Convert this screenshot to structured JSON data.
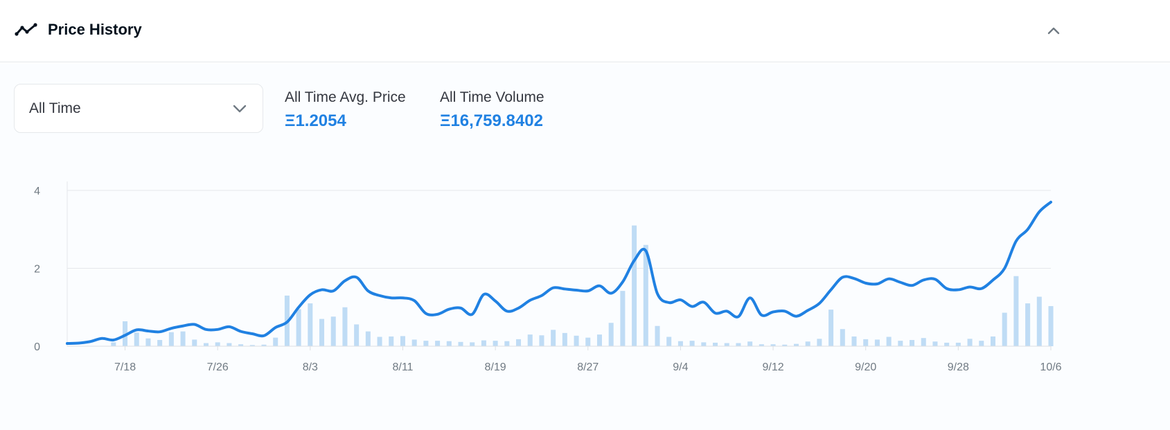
{
  "header": {
    "title": "Price History",
    "icon": "chart-line-icon",
    "collapse_icon": "chevron-up-icon"
  },
  "controls": {
    "range_select": {
      "value": "All Time",
      "icon": "chevron-down-icon"
    },
    "avg_price": {
      "label": "All Time Avg. Price",
      "value": "Ξ1.2054"
    },
    "volume": {
      "label": "All Time Volume",
      "value": "Ξ16,759.8402"
    }
  },
  "colors": {
    "line": "#2081e2",
    "bar": "#bfdcf5",
    "accent": "#2081e2",
    "grid": "#e5e8eb"
  },
  "chart_data": {
    "type": "line",
    "y_ticks": [
      "0",
      "2",
      "4"
    ],
    "x_ticks": [
      "7/18",
      "7/26",
      "8/3",
      "8/11",
      "8/19",
      "8/27",
      "9/4",
      "9/12",
      "9/20",
      "9/28",
      "10/6"
    ],
    "ylim": [
      0,
      4
    ],
    "xlim": [
      "2021-07-13",
      "2021-10-06"
    ],
    "grid": true,
    "series": [
      {
        "type": "line",
        "x": [
          "2021-07-13",
          "2021-07-14",
          "2021-07-15",
          "2021-07-16",
          "2021-07-17",
          "2021-07-18",
          "2021-07-19",
          "2021-07-20",
          "2021-07-21",
          "2021-07-22",
          "2021-07-23",
          "2021-07-24",
          "2021-07-25",
          "2021-07-26",
          "2021-07-27",
          "2021-07-28",
          "2021-07-29",
          "2021-07-30",
          "2021-07-31",
          "2021-08-01",
          "2021-08-02",
          "2021-08-03",
          "2021-08-04",
          "2021-08-05",
          "2021-08-06",
          "2021-08-07",
          "2021-08-08",
          "2021-08-09",
          "2021-08-10",
          "2021-08-11",
          "2021-08-12",
          "2021-08-13",
          "2021-08-14",
          "2021-08-15",
          "2021-08-16",
          "2021-08-17",
          "2021-08-18",
          "2021-08-19",
          "2021-08-20",
          "2021-08-21",
          "2021-08-22",
          "2021-08-23",
          "2021-08-24",
          "2021-08-25",
          "2021-08-26",
          "2021-08-27",
          "2021-08-28",
          "2021-08-29",
          "2021-08-30",
          "2021-08-31",
          "2021-09-01",
          "2021-09-02",
          "2021-09-03",
          "2021-09-04",
          "2021-09-05",
          "2021-09-06",
          "2021-09-07",
          "2021-09-08",
          "2021-09-09",
          "2021-09-10",
          "2021-09-11",
          "2021-09-12",
          "2021-09-13",
          "2021-09-14",
          "2021-09-15",
          "2021-09-16",
          "2021-09-17",
          "2021-09-18",
          "2021-09-19",
          "2021-09-20",
          "2021-09-21",
          "2021-09-22",
          "2021-09-23",
          "2021-09-24",
          "2021-09-25",
          "2021-09-26",
          "2021-09-27",
          "2021-09-28",
          "2021-09-29",
          "2021-09-30",
          "2021-10-01",
          "2021-10-02",
          "2021-10-03",
          "2021-10-04",
          "2021-10-05",
          "2021-10-06"
        ],
        "values": [
          0.07,
          0.08,
          0.12,
          0.2,
          0.16,
          0.28,
          0.42,
          0.39,
          0.37,
          0.46,
          0.52,
          0.56,
          0.43,
          0.43,
          0.5,
          0.38,
          0.32,
          0.27,
          0.48,
          0.62,
          1.0,
          1.32,
          1.45,
          1.42,
          1.68,
          1.77,
          1.42,
          1.3,
          1.24,
          1.24,
          1.17,
          0.84,
          0.82,
          0.95,
          0.98,
          0.82,
          1.33,
          1.16,
          0.9,
          0.98,
          1.18,
          1.3,
          1.5,
          1.47,
          1.44,
          1.42,
          1.55,
          1.36,
          1.65,
          2.2,
          2.45,
          1.35,
          1.12,
          1.19,
          1.02,
          1.13,
          0.85,
          0.9,
          0.76,
          1.24,
          0.8,
          0.88,
          0.9,
          0.77,
          0.92,
          1.1,
          1.45,
          1.77,
          1.74,
          1.62,
          1.6,
          1.73,
          1.64,
          1.56,
          1.7,
          1.72,
          1.48,
          1.45,
          1.52,
          1.48,
          1.7,
          2.0,
          2.7,
          3.0,
          3.45,
          3.7
        ]
      },
      {
        "type": "bar",
        "x": [
          "2021-07-17",
          "2021-07-18",
          "2021-07-19",
          "2021-07-20",
          "2021-07-21",
          "2021-07-22",
          "2021-07-23",
          "2021-07-24",
          "2021-07-25",
          "2021-07-26",
          "2021-07-27",
          "2021-07-28",
          "2021-07-29",
          "2021-07-30",
          "2021-07-31",
          "2021-08-01",
          "2021-08-02",
          "2021-08-03",
          "2021-08-04",
          "2021-08-05",
          "2021-08-06",
          "2021-08-07",
          "2021-08-08",
          "2021-08-09",
          "2021-08-10",
          "2021-08-11",
          "2021-08-12",
          "2021-08-13",
          "2021-08-14",
          "2021-08-15",
          "2021-08-16",
          "2021-08-17",
          "2021-08-18",
          "2021-08-19",
          "2021-08-20",
          "2021-08-21",
          "2021-08-22",
          "2021-08-23",
          "2021-08-24",
          "2021-08-25",
          "2021-08-26",
          "2021-08-27",
          "2021-08-28",
          "2021-08-29",
          "2021-08-30",
          "2021-08-31",
          "2021-09-01",
          "2021-09-02",
          "2021-09-03",
          "2021-09-04",
          "2021-09-05",
          "2021-09-06",
          "2021-09-07",
          "2021-09-08",
          "2021-09-09",
          "2021-09-10",
          "2021-09-11",
          "2021-09-12",
          "2021-09-13",
          "2021-09-14",
          "2021-09-15",
          "2021-09-16",
          "2021-09-17",
          "2021-09-18",
          "2021-09-19",
          "2021-09-20",
          "2021-09-21",
          "2021-09-22",
          "2021-09-23",
          "2021-09-24",
          "2021-09-25",
          "2021-09-26",
          "2021-09-27",
          "2021-09-28",
          "2021-09-29",
          "2021-09-30",
          "2021-10-01",
          "2021-10-02",
          "2021-10-03",
          "2021-10-04",
          "2021-10-05",
          "2021-10-06"
        ],
        "values": [
          0.1,
          0.64,
          0.35,
          0.2,
          0.16,
          0.36,
          0.38,
          0.17,
          0.08,
          0.1,
          0.08,
          0.05,
          0.03,
          0.04,
          0.22,
          1.3,
          0.95,
          1.1,
          0.7,
          0.76,
          1.0,
          0.56,
          0.38,
          0.24,
          0.25,
          0.26,
          0.17,
          0.14,
          0.14,
          0.13,
          0.11,
          0.1,
          0.15,
          0.14,
          0.13,
          0.18,
          0.3,
          0.28,
          0.42,
          0.34,
          0.27,
          0.22,
          0.3,
          0.6,
          1.42,
          3.1,
          2.6,
          0.52,
          0.24,
          0.13,
          0.14,
          0.1,
          0.09,
          0.08,
          0.08,
          0.12,
          0.05,
          0.05,
          0.04,
          0.06,
          0.12,
          0.19,
          0.94,
          0.44,
          0.25,
          0.18,
          0.17,
          0.24,
          0.14,
          0.16,
          0.21,
          0.12,
          0.09,
          0.09,
          0.19,
          0.14,
          0.25,
          0.86,
          1.8,
          1.1,
          1.27,
          1.03
        ]
      }
    ]
  }
}
